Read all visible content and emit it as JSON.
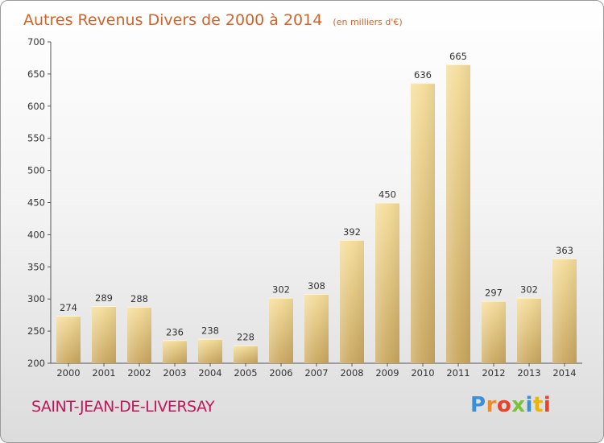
{
  "chart_data": {
    "type": "bar",
    "title": "Autres Revenus Divers de 2000 à 2014",
    "subtitle": "(en milliers d'€)",
    "categories": [
      "2000",
      "2001",
      "2002",
      "2003",
      "2004",
      "2005",
      "2006",
      "2007",
      "2008",
      "2009",
      "2010",
      "2011",
      "2012",
      "2013",
      "2014"
    ],
    "values": [
      274,
      289,
      288,
      236,
      238,
      228,
      302,
      308,
      392,
      450,
      636,
      665,
      297,
      302,
      363
    ],
    "ylim": [
      200,
      700
    ],
    "yticks": [
      200,
      250,
      300,
      350,
      400,
      450,
      500,
      550,
      600,
      650,
      700
    ],
    "grid": false,
    "bar_color": "#e8c97e",
    "title_color": "#d0632a"
  },
  "footer": {
    "city": "SAINT-JEAN-DE-LIVERSAY",
    "city_color": "#c2185b"
  },
  "logo": {
    "text": "Proxiti",
    "letter_colors": [
      "#3b8fd6",
      "#f08a24",
      "#e8412c",
      "#7cbf3a",
      "#3b8fd6",
      "#f0b400",
      "#e8412c"
    ]
  }
}
